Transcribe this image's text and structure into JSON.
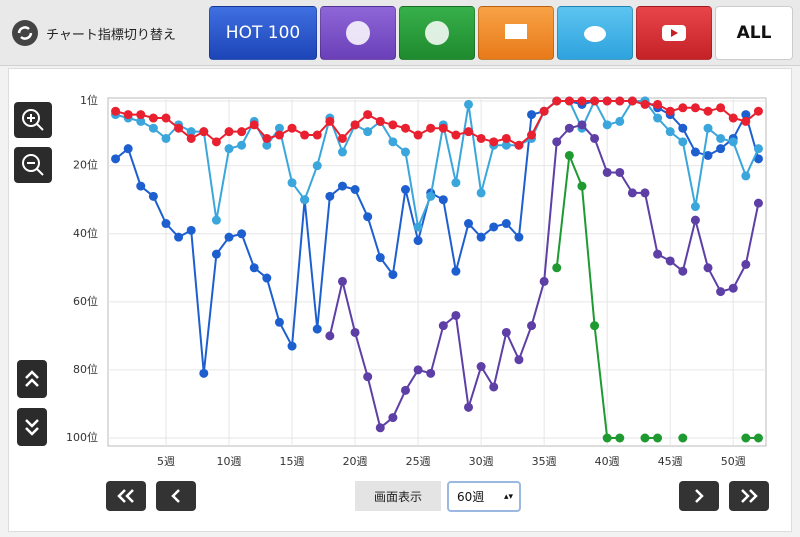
{
  "toolbar": {
    "label": "チャート指標切り替え",
    "buttons": [
      "HOT 100",
      "ALL"
    ]
  },
  "controls": {
    "display_label": "画面表示",
    "period": "60週"
  },
  "chart_data": {
    "type": "line",
    "x": [
      1,
      2,
      3,
      4,
      5,
      6,
      7,
      8,
      9,
      10,
      11,
      12,
      13,
      14,
      15,
      16,
      17,
      18,
      19,
      20,
      21,
      22,
      23,
      24,
      25,
      26,
      27,
      28,
      29,
      30,
      31,
      32,
      33,
      34,
      35,
      36,
      37,
      38,
      39,
      40,
      41,
      42,
      43,
      44,
      45,
      46,
      47,
      48,
      49,
      50,
      51,
      52
    ],
    "xlim": [
      0.4,
      52.6
    ],
    "xticks": [
      {
        "value": 5,
        "label": "5週"
      },
      {
        "value": 10,
        "label": "10週"
      },
      {
        "value": 15,
        "label": "15週"
      },
      {
        "value": 20,
        "label": "20週"
      },
      {
        "value": 25,
        "label": "25週"
      },
      {
        "value": 30,
        "label": "30週"
      },
      {
        "value": 35,
        "label": "35週"
      },
      {
        "value": 40,
        "label": "40週"
      },
      {
        "value": 45,
        "label": "45週"
      },
      {
        "value": 50,
        "label": "50週"
      }
    ],
    "ylim": [
      100,
      1
    ],
    "yticks": [
      {
        "value": 1,
        "label": "1位"
      },
      {
        "value": 20,
        "label": "20位"
      },
      {
        "value": 40,
        "label": "40位"
      },
      {
        "value": 60,
        "label": "60位"
      },
      {
        "value": 80,
        "label": "80位"
      },
      {
        "value": 100,
        "label": "100位"
      }
    ],
    "grid": true,
    "series": [
      {
        "color": "#1e5fd0",
        "values": [
          18,
          15,
          26,
          29,
          37,
          41,
          39,
          81,
          46,
          41,
          40,
          50,
          53,
          66,
          73,
          30,
          68,
          29,
          26,
          27,
          35,
          47,
          52,
          27,
          42,
          28,
          30,
          51,
          37,
          41,
          38,
          37,
          41,
          5,
          4,
          1,
          1,
          2,
          1,
          1,
          1,
          1,
          1,
          3,
          5,
          9,
          16,
          17,
          15,
          12,
          5,
          18
        ]
      },
      {
        "color": "#3aa6dc",
        "values": [
          5,
          6,
          7,
          9,
          12,
          8,
          10,
          10,
          36,
          15,
          14,
          7,
          14,
          9,
          25,
          30,
          20,
          6,
          16,
          8,
          10,
          7,
          13,
          16,
          38,
          29,
          8,
          25,
          2,
          28,
          14,
          14,
          14,
          12,
          4,
          1,
          1,
          9,
          1,
          8,
          7,
          1,
          1,
          6,
          10,
          13,
          32,
          9,
          12,
          13,
          23,
          15
        ]
      },
      {
        "color": "#5d3fa6",
        "values": [
          null,
          null,
          null,
          null,
          null,
          null,
          null,
          null,
          null,
          null,
          null,
          null,
          null,
          null,
          null,
          null,
          null,
          70,
          54,
          69,
          82,
          97,
          94,
          86,
          80,
          81,
          67,
          64,
          91,
          79,
          85,
          69,
          77,
          67,
          54,
          13,
          9,
          8,
          12,
          22,
          22,
          28,
          28,
          46,
          48,
          51,
          36,
          50,
          57,
          56,
          49,
          31
        ]
      },
      {
        "color": "#1f9a30",
        "values": [
          null,
          null,
          null,
          null,
          null,
          null,
          null,
          null,
          null,
          null,
          null,
          null,
          null,
          null,
          null,
          null,
          null,
          null,
          null,
          null,
          null,
          null,
          null,
          null,
          null,
          null,
          null,
          null,
          null,
          null,
          null,
          null,
          null,
          null,
          null,
          50,
          17,
          26,
          67,
          100,
          100,
          null,
          100,
          100,
          null,
          100,
          null,
          null,
          null,
          null,
          100,
          100
        ]
      },
      {
        "color": "#e8202f",
        "values": [
          4,
          5,
          5,
          6,
          6,
          9,
          12,
          10,
          13,
          10,
          10,
          8,
          12,
          11,
          9,
          11,
          11,
          7,
          12,
          8,
          5,
          7,
          8,
          9,
          11,
          9,
          9,
          11,
          10,
          12,
          13,
          12,
          14,
          11,
          4,
          1,
          1,
          1,
          1,
          1,
          1,
          1,
          2,
          2,
          4,
          3,
          3,
          4,
          3,
          6,
          7,
          4
        ]
      }
    ]
  }
}
